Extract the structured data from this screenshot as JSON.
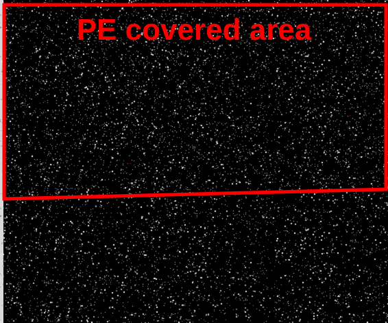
{
  "image": {
    "background_color": "#000000",
    "left_edge_color": "#d9d9d9",
    "noise": {
      "dense_region_pixel_color": "#ffffff",
      "sparse_region_pixel_color": "#ffffff"
    },
    "region": {
      "label": "PE covered area",
      "color": "#ff0000"
    }
  }
}
